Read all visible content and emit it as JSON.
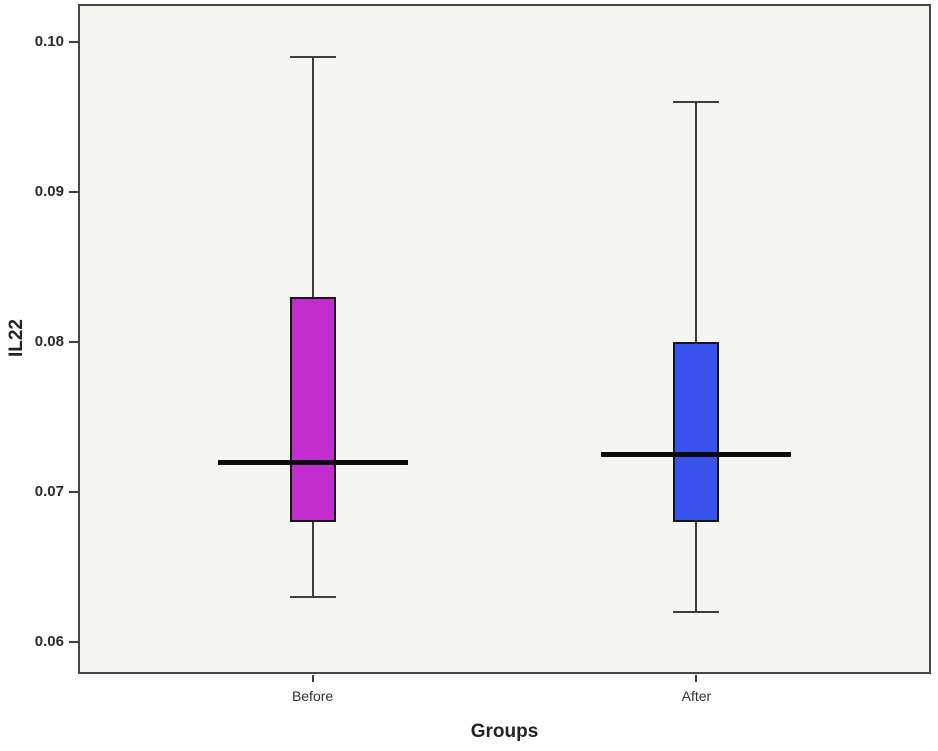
{
  "figure": {
    "background_color": "#ffffff",
    "plot_background_color": "#f5f5f2",
    "frame_color": "#43484a",
    "whisker_color": "#393e41",
    "box_border_color": "#161616",
    "median_color": "#0b0b0b",
    "tick_label_color": "#2b2b2b",
    "axis_title_color": "#232323"
  },
  "chart_data": {
    "type": "boxplot",
    "title": "",
    "xlabel": "Groups",
    "ylabel": "IL22",
    "categories": [
      "Before",
      "After"
    ],
    "ylim": [
      0.0579,
      0.1025
    ],
    "y_ticks": [
      0.1,
      0.09,
      0.08,
      0.07,
      0.06
    ],
    "y_tick_labels": [
      "0.10",
      "0.09",
      "0.08",
      "0.07",
      "0.06"
    ],
    "grid": false,
    "legend_position": "none",
    "series": [
      {
        "name": "Before",
        "min": 0.063,
        "q1": 0.068,
        "median": 0.072,
        "q3": 0.083,
        "max": 0.099,
        "fill_color": "#c32ccd"
      },
      {
        "name": "After",
        "min": 0.062,
        "q1": 0.068,
        "median": 0.0725,
        "q3": 0.08,
        "max": 0.096,
        "fill_color": "#3a53ef"
      }
    ]
  }
}
